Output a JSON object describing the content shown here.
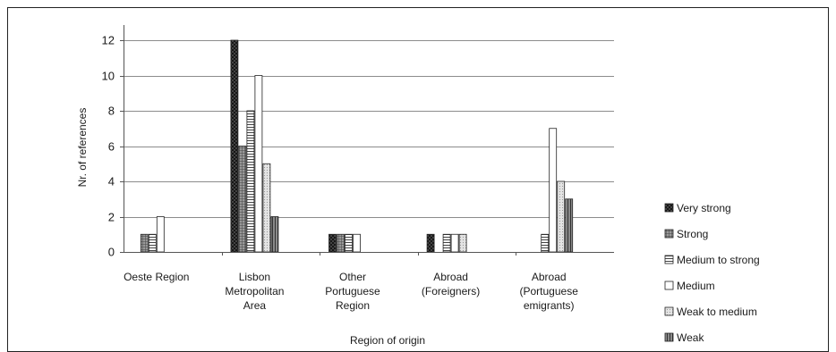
{
  "chart_data": {
    "type": "bar",
    "title": "",
    "xlabel": "Region of origin",
    "ylabel": "Nr. of references",
    "ylim": [
      0,
      12
    ],
    "yticks": [
      0,
      2,
      4,
      6,
      8,
      10,
      12
    ],
    "grid": true,
    "legend_position": "right",
    "categories": [
      [
        "Oeste Region"
      ],
      [
        "Lisbon",
        "Metropolitan",
        "Area"
      ],
      [
        "Other",
        "Portuguese",
        "Region"
      ],
      [
        "Abroad",
        "(Foreigners)"
      ],
      [
        "Abroad",
        "(Portuguese",
        "emigrants)"
      ]
    ],
    "series": [
      {
        "name": "Very strong",
        "pattern": "crosshatch-dark",
        "values": [
          0,
          12,
          1,
          1,
          0
        ]
      },
      {
        "name": "Strong",
        "pattern": "grid-dark",
        "values": [
          1,
          6,
          1,
          0,
          0
        ]
      },
      {
        "name": "Medium to strong",
        "pattern": "horizontal-lines",
        "values": [
          1,
          8,
          1,
          1,
          1
        ]
      },
      {
        "name": "Medium",
        "pattern": "white",
        "values": [
          2,
          10,
          1,
          1,
          7
        ]
      },
      {
        "name": "Weak to medium",
        "pattern": "light-dots",
        "values": [
          0,
          5,
          0,
          1,
          4
        ]
      },
      {
        "name": "Weak",
        "pattern": "vertical-dark",
        "values": [
          0,
          2,
          0,
          0,
          3
        ]
      }
    ]
  }
}
